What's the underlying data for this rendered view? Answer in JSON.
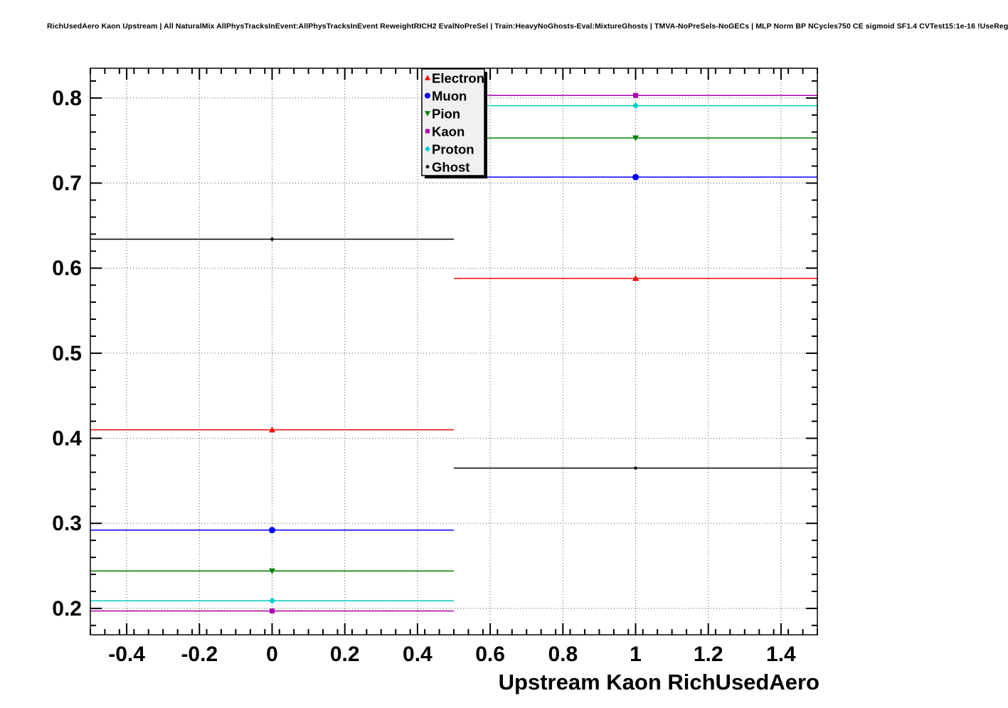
{
  "title": "RichUsedAero Kaon Upstream | All NaturalMix AllPhysTracksInEvent:AllPhysTracksInEvent ReweightRICH2 EvalNoPreSel | Train:HeavyNoGhosts-Eval:MixtureGhosts | TMVA-NoPreSels-NoGECs | MLP Norm BP NCycles750 CE sigmoid SF1.4 CVTest15:1e-16 !UseReg",
  "chart_data": {
    "type": "scatter",
    "title": "",
    "xlabel": "Upstream Kaon RichUsedAero",
    "ylabel": "",
    "xlim": [
      -0.5,
      1.5
    ],
    "ylim": [
      0.169,
      0.835
    ],
    "grid": true,
    "grid_style": "dotted",
    "legend_position": "top-center",
    "x_major_ticks": [
      -0.4,
      -0.2,
      0,
      0.2,
      0.4,
      0.6,
      0.8,
      1,
      1.2,
      1.4
    ],
    "x_tick_labels": [
      "-0.4",
      "-0.2",
      "0",
      "0.2",
      "0.4",
      "0.6",
      "0.8",
      "1",
      "1.2",
      "1.4"
    ],
    "x_minor_step": 0.04,
    "y_major_ticks": [
      0.2,
      0.3,
      0.4,
      0.5,
      0.6,
      0.7,
      0.8
    ],
    "y_tick_labels": [
      "0.2",
      "0.3",
      "0.4",
      "0.5",
      "0.6",
      "0.7",
      "0.8"
    ],
    "y_minor_step": 0.02,
    "series": [
      {
        "name": "Electron",
        "color": "#ff0000",
        "marker": "triangle-up",
        "points": [
          {
            "x": 0,
            "y": 0.41,
            "xerr": 0.5
          },
          {
            "x": 1,
            "y": 0.588,
            "xerr": 0.5
          }
        ]
      },
      {
        "name": "Muon",
        "color": "#0000ff",
        "marker": "circle",
        "points": [
          {
            "x": 0,
            "y": 0.292,
            "xerr": 0.5
          },
          {
            "x": 1,
            "y": 0.707,
            "xerr": 0.5
          }
        ]
      },
      {
        "name": "Pion",
        "color": "#008000",
        "marker": "triangle-down",
        "points": [
          {
            "x": 0,
            "y": 0.244,
            "xerr": 0.5
          },
          {
            "x": 1,
            "y": 0.753,
            "xerr": 0.5
          }
        ]
      },
      {
        "name": "Kaon",
        "color": "#aa00aa",
        "marker": "square",
        "points": [
          {
            "x": 0,
            "y": 0.197,
            "xerr": 0.5
          },
          {
            "x": 1,
            "y": 0.803,
            "xerr": 0.5
          }
        ]
      },
      {
        "name": "Proton",
        "color": "#00cccc",
        "marker": "diamond",
        "points": [
          {
            "x": 0,
            "y": 0.209,
            "xerr": 0.5
          },
          {
            "x": 1,
            "y": 0.791,
            "xerr": 0.5
          }
        ]
      },
      {
        "name": "Ghost",
        "color": "#000000",
        "marker": "small-diamond",
        "points": [
          {
            "x": 0,
            "y": 0.634,
            "xerr": 0.5
          },
          {
            "x": 1,
            "y": 0.365,
            "xerr": 0.5
          }
        ]
      }
    ],
    "legend_entries": [
      "Electron",
      "Muon",
      "Pion",
      "Kaon",
      "Proton",
      "Ghost"
    ]
  }
}
